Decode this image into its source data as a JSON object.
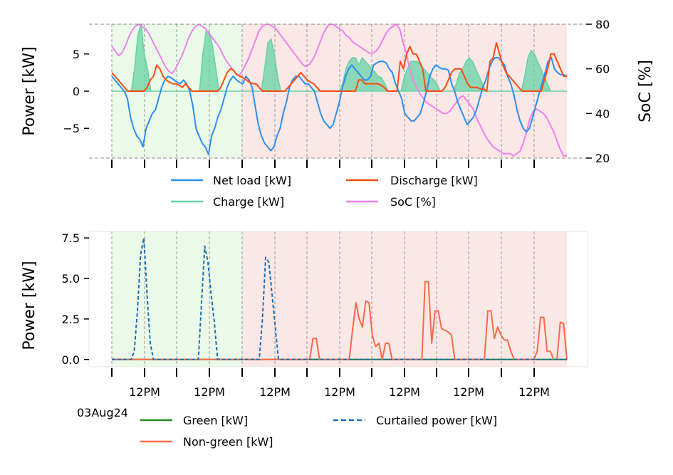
{
  "chart_data": [
    {
      "type": "line",
      "ylabel": "Power [kW]",
      "y2label": "SoC [%]",
      "ylim": [
        -9,
        9
      ],
      "y2lim": [
        20,
        80
      ],
      "yticks": [
        -5,
        0,
        5
      ],
      "y2ticks": [
        20,
        40,
        60,
        80
      ],
      "ytick_labels": [
        "−5",
        "0",
        "5"
      ],
      "y2tick_labels": [
        "20",
        "40",
        "60",
        "80"
      ],
      "x_days": 7,
      "shading": {
        "green_days": [
          0,
          1
        ],
        "red_days": [
          2,
          3,
          4,
          5,
          6
        ],
        "green_color": "#ebf9e8",
        "red_color": "#fbe7e5"
      },
      "legend": {
        "placement": "below",
        "entries": [
          "Net load [kW]",
          "Charge [kW]",
          "Discharge [kW]",
          "SoC [%]"
        ]
      },
      "series": [
        {
          "name": "Net load [kW]",
          "color": "#2b8ff0",
          "values": [
            2,
            1.5,
            1,
            0.5,
            0,
            -1,
            -3.5,
            -5,
            -6,
            -6.5,
            -7.5,
            -5,
            -4,
            -3,
            -2.5,
            -1,
            0.5,
            1.5,
            2,
            1.8,
            1.5,
            1.2,
            1,
            1.5,
            1,
            0,
            -2,
            -5,
            -6,
            -7,
            -7.5,
            -8.5,
            -6,
            -5,
            -3.5,
            -2.5,
            -1,
            0.5,
            1.5,
            2,
            1.5,
            1.2,
            1,
            2,
            1.5,
            0.5,
            -2,
            -4.5,
            -6,
            -7,
            -7.5,
            -8,
            -7.5,
            -6,
            -5,
            -3,
            -1.5,
            0.5,
            1.5,
            2,
            2,
            1.5,
            1,
            1,
            0.5,
            0,
            -1.5,
            -3,
            -4,
            -4.5,
            -5,
            -4.5,
            -3,
            -1.5,
            0.5,
            2,
            3,
            3.5,
            3,
            2.5,
            2,
            1.5,
            1.5,
            2,
            3.5,
            3.8,
            4,
            4,
            3.8,
            3,
            2.5,
            1,
            0,
            -1,
            -3,
            -3.5,
            -4,
            -4,
            -3.5,
            -3,
            -1.5,
            0,
            2,
            3,
            3.5,
            3.2,
            3,
            3,
            2.8,
            1,
            0,
            -1.5,
            -2.5,
            -3.5,
            -4.5,
            -4,
            -3.5,
            -2.5,
            -1,
            0.5,
            1.5,
            3,
            4,
            4.5,
            4.5,
            4,
            3.5,
            2,
            1,
            -0.5,
            -2.5,
            -4,
            -5,
            -5.5,
            -5,
            -3.5,
            -2,
            -0.5,
            1,
            2.5,
            4,
            4.5,
            3,
            2.5,
            2.2,
            2.2,
            2
          ]
        },
        {
          "name": "Discharge [kW]",
          "color": "#ff4c10",
          "values": [
            2.5,
            2,
            1.5,
            1,
            0.5,
            0,
            0,
            0,
            0,
            0,
            0,
            0.5,
            1.5,
            2,
            3.5,
            3,
            2,
            1.5,
            1.2,
            1,
            1,
            0.8,
            0.5,
            1,
            0.5,
            0,
            0,
            0,
            0,
            0,
            0,
            0,
            0,
            0,
            0.5,
            1.5,
            2.5,
            3,
            2.8,
            2.2,
            2,
            1.8,
            1.5,
            1.2,
            1,
            1,
            0.5,
            0,
            0,
            0,
            0,
            0,
            0,
            0,
            0,
            0.5,
            1,
            1.5,
            2,
            2.5,
            2,
            1.5,
            1.2,
            1,
            0.5,
            0,
            0,
            0,
            0,
            0,
            0,
            0,
            0,
            0,
            0,
            0,
            0,
            1.5,
            1.5,
            1,
            1,
            1,
            1,
            1,
            0.8,
            0.5,
            0,
            0,
            0,
            0,
            4,
            3,
            5,
            6,
            5,
            5,
            4,
            3,
            0,
            0,
            0,
            0,
            0,
            0,
            0.5,
            1.5,
            2.5,
            3,
            3,
            3,
            2,
            1,
            0.5,
            0.5,
            0.5,
            0.3,
            0.3,
            0,
            4,
            4.5,
            6.5,
            5,
            3.5,
            2.5,
            2,
            1.5,
            1,
            0.5,
            0,
            0,
            0,
            0,
            0,
            0,
            0,
            1.5,
            3,
            5,
            5,
            4,
            3,
            2,
            2
          ]
        },
        {
          "name": "SoC [%]",
          "color": "#ee82ee",
          "values": [
            70,
            68,
            66,
            67,
            70,
            74,
            77,
            79,
            80,
            79,
            78,
            76,
            73,
            70,
            67,
            64,
            61,
            59,
            58,
            60,
            63,
            66,
            70,
            74,
            77,
            79,
            80,
            79,
            78,
            76,
            74,
            72,
            70,
            67,
            64,
            62,
            60,
            58,
            57,
            59,
            62,
            65,
            69,
            73,
            77,
            79,
            80,
            80,
            79,
            78,
            76,
            74,
            72,
            70,
            68,
            66,
            64,
            62,
            61,
            62,
            64,
            67,
            71,
            75,
            78,
            80,
            80,
            79,
            78,
            77,
            75,
            74,
            72,
            71,
            70,
            69,
            68,
            67,
            67,
            68,
            70,
            73,
            76,
            78,
            79,
            80,
            78,
            72,
            67,
            60,
            55,
            52,
            49,
            47,
            45,
            44,
            43,
            42,
            41,
            40,
            40,
            41,
            43,
            45,
            47,
            48,
            46,
            44,
            42,
            38,
            35,
            32,
            29,
            27,
            25,
            24,
            23,
            22,
            22,
            22,
            21,
            22,
            23,
            27,
            32,
            38,
            41,
            42,
            41,
            40,
            38,
            35,
            32,
            28,
            24,
            21,
            21
          ]
        },
        {
          "name": "Charge [kW]",
          "color": "#67d2a5",
          "values": [
            0,
            0,
            0,
            0,
            0,
            0,
            0,
            3,
            7.5,
            9,
            5,
            3,
            0,
            0,
            0,
            0,
            0,
            0,
            0,
            0,
            0,
            0,
            0,
            0,
            0,
            0,
            0,
            0,
            5,
            8,
            8,
            6,
            3,
            0,
            0,
            0,
            0,
            0,
            0,
            0,
            0,
            0,
            0,
            0,
            0,
            0,
            0,
            3,
            6.5,
            7,
            5,
            2,
            0,
            0,
            0,
            0,
            0,
            0,
            0,
            0,
            0,
            0,
            0,
            0,
            0,
            0,
            0,
            0,
            0,
            0,
            0,
            1,
            3,
            4,
            4.5,
            4.5,
            3.5,
            4.5,
            4,
            3.5,
            3,
            2.5,
            2,
            1.8,
            1,
            0,
            0,
            0,
            0,
            0,
            2,
            3,
            4,
            4,
            4,
            3.5,
            3,
            2.5,
            2,
            1.5,
            1,
            0,
            0,
            0,
            0,
            0,
            1,
            2.5,
            3,
            4,
            4.5,
            4,
            3,
            2,
            1,
            0,
            0,
            0,
            0,
            0,
            0,
            0,
            0,
            0,
            0,
            0,
            0,
            2,
            4.5,
            5.5,
            5,
            4,
            3,
            2,
            1,
            0,
            0,
            0,
            0,
            0,
            0
          ]
        }
      ]
    },
    {
      "type": "line",
      "ylabel": "Power [kW]",
      "ylim": [
        -0.45,
        7.9
      ],
      "yticks": [
        0.0,
        2.5,
        5.0,
        7.5
      ],
      "ytick_labels": [
        "0.0",
        "2.5",
        "5.0",
        "7.5"
      ],
      "x_tick_labels": [
        "12PM",
        "12PM",
        "12PM",
        "12PM",
        "12PM",
        "12PM",
        "12PM"
      ],
      "x_start_label": "03Aug24",
      "legend": {
        "placement": "below",
        "entries": [
          "Green [kW]",
          "Curtailed power [kW]",
          "Non-green [kW]"
        ]
      },
      "series": [
        {
          "name": "Green [kW]",
          "color": "#228b22",
          "values": [
            0,
            0
          ]
        },
        {
          "name": "Non-green [kW]",
          "color": "#fa6a4a",
          "values": [
            0,
            0,
            0,
            0,
            0,
            0,
            0,
            0,
            0,
            0,
            0,
            0,
            0,
            0,
            0,
            0,
            0,
            0,
            0,
            0,
            0,
            0,
            0,
            0,
            0,
            0,
            0,
            0,
            0,
            0,
            0,
            0,
            0,
            0,
            0,
            0,
            0,
            0,
            0,
            0,
            0,
            0,
            0,
            0,
            0,
            0,
            0,
            0,
            0,
            0,
            0,
            0,
            0,
            0,
            0,
            0,
            0,
            0,
            0,
            0,
            0,
            1.3,
            1.3,
            0,
            0,
            0,
            0,
            0,
            0,
            0,
            0,
            0,
            0,
            1.8,
            3.5,
            2.5,
            2,
            3.6,
            3.5,
            1.5,
            0.8,
            1,
            0,
            1,
            1,
            0,
            0,
            0,
            0,
            0,
            0,
            0,
            0,
            0,
            0,
            4.8,
            4.8,
            1,
            3,
            3,
            1.9,
            1.8,
            1.7,
            1.5,
            0,
            0,
            0,
            0,
            0,
            0,
            0,
            0,
            0,
            0,
            3,
            3,
            1.3,
            2,
            1.5,
            1.2,
            1.2,
            0.5,
            0,
            0,
            0,
            0,
            0,
            0,
            0,
            0.5,
            2.6,
            2.6,
            0.5,
            0.5,
            0,
            0,
            2.3,
            2.2,
            0
          ]
        },
        {
          "name": "Curtailed power [kW]",
          "color": "#1f6fb0",
          "values": [
            0,
            0,
            0,
            0,
            0,
            0,
            0,
            0.5,
            3,
            6.5,
            7.5,
            4,
            1,
            0,
            0,
            0,
            0,
            0,
            0,
            0,
            0,
            0,
            0,
            0,
            0,
            0,
            0,
            0,
            3.5,
            7,
            6,
            4,
            2.3,
            0,
            0,
            0,
            0,
            0,
            0,
            0,
            0,
            0,
            0,
            0,
            0,
            0,
            0,
            2.5,
            6.3,
            6,
            4,
            2,
            0,
            0,
            0,
            0,
            0,
            0,
            0,
            0,
            0,
            0,
            0,
            0,
            0,
            0,
            0,
            0,
            0,
            0,
            0,
            0,
            0,
            0,
            0,
            0,
            0,
            0,
            0,
            0,
            0,
            0,
            0,
            0,
            0,
            0,
            0,
            0,
            0,
            0,
            0,
            0,
            0,
            0,
            0,
            0,
            0,
            0,
            0,
            0,
            0,
            0,
            0,
            0,
            0,
            0,
            0,
            0,
            0,
            0,
            0,
            0,
            0,
            0,
            0,
            0,
            0,
            0,
            0,
            0,
            0,
            0,
            0,
            0,
            0,
            0,
            0,
            0,
            0,
            0,
            0,
            0,
            0,
            0,
            0,
            0,
            0,
            0,
            0,
            0,
            0,
            0,
            0
          ]
        }
      ]
    }
  ]
}
